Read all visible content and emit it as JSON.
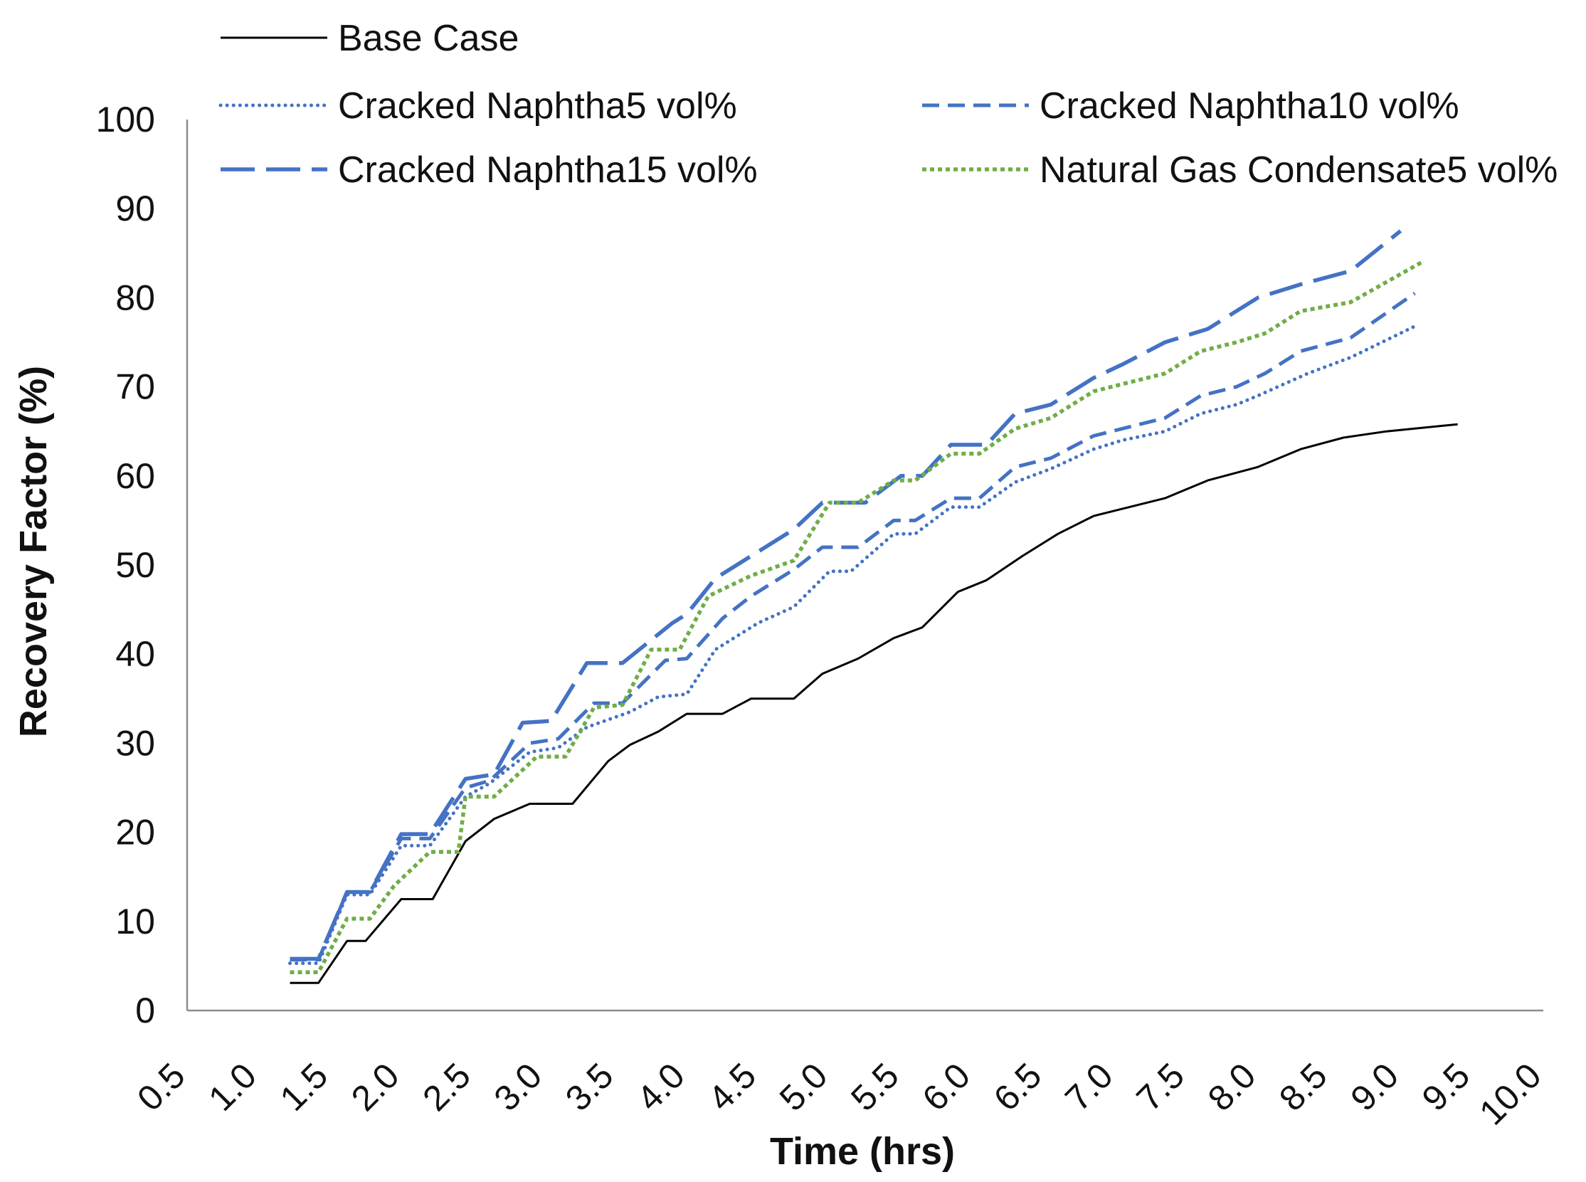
{
  "chart_data": {
    "type": "line",
    "title": "",
    "xlabel": "Time (hrs)",
    "ylabel": "Recovery Factor (%)",
    "xlim": [
      0.5,
      10.0
    ],
    "ylim": [
      0,
      100
    ],
    "xticks": [
      "0.5",
      "1.0",
      "1.5",
      "2.0",
      "2.5",
      "3.0",
      "3.5",
      "4.0",
      "4.5",
      "5.0",
      "5.5",
      "6.0",
      "6.5",
      "7.0",
      "7.5",
      "8.0",
      "8.5",
      "9.0",
      "9.5",
      "10.0"
    ],
    "yticks": [
      "0",
      "10",
      "20",
      "30",
      "40",
      "50",
      "60",
      "70",
      "80",
      "90",
      "100"
    ],
    "legend_position": "top",
    "grid": false,
    "series": [
      {
        "name": "Base Case",
        "style": "solid",
        "color": "#000000",
        "x": [
          1.22,
          1.42,
          1.62,
          1.75,
          2.0,
          2.22,
          2.45,
          2.65,
          2.9,
          3.2,
          3.45,
          3.6,
          3.8,
          4.0,
          4.25,
          4.45,
          4.75,
          4.95,
          5.2,
          5.45,
          5.65,
          5.9,
          6.1,
          6.35,
          6.6,
          6.85,
          7.05,
          7.35,
          7.65,
          8.0,
          8.3,
          8.6,
          8.9,
          9.4
        ],
        "y": [
          3.1,
          3.1,
          7.8,
          7.8,
          12.5,
          12.5,
          19.0,
          21.5,
          23.2,
          23.2,
          28.0,
          29.8,
          31.3,
          33.3,
          33.3,
          35.0,
          35.0,
          37.8,
          39.5,
          41.8,
          43.0,
          47.0,
          48.3,
          51.0,
          53.5,
          55.5,
          56.3,
          57.5,
          59.5,
          61.0,
          63.0,
          64.3,
          65.0,
          65.8
        ]
      },
      {
        "name": "Cracked Naphtha5 vol%",
        "style": "dotted",
        "color": "#4472C4",
        "x": [
          1.22,
          1.42,
          1.62,
          1.78,
          2.0,
          2.2,
          2.45,
          2.62,
          2.9,
          3.1,
          3.3,
          3.6,
          3.8,
          4.0,
          4.2,
          4.5,
          4.75,
          5.0,
          5.15,
          5.45,
          5.6,
          5.85,
          6.05,
          6.3,
          6.55,
          6.85,
          7.05,
          7.35,
          7.6,
          7.85,
          8.0,
          8.35,
          8.65,
          9.1
        ],
        "y": [
          5.3,
          5.3,
          13.0,
          13.0,
          18.5,
          18.5,
          24.0,
          25.5,
          29.0,
          29.5,
          31.8,
          33.5,
          35.2,
          35.5,
          40.5,
          43.5,
          45.3,
          49.3,
          49.3,
          53.5,
          53.5,
          56.5,
          56.5,
          59.3,
          60.8,
          63.0,
          64.0,
          65.0,
          67.0,
          68.0,
          69.0,
          71.5,
          73.3,
          76.8
        ]
      },
      {
        "name": "Cracked Naphtha10 vol%",
        "style": "dashed",
        "color": "#4472C4",
        "x": [
          1.22,
          1.42,
          1.62,
          1.78,
          2.0,
          2.2,
          2.45,
          2.62,
          2.9,
          3.1,
          3.35,
          3.55,
          3.85,
          4.0,
          4.25,
          4.45,
          4.75,
          4.95,
          5.2,
          5.45,
          5.6,
          5.85,
          6.05,
          6.3,
          6.55,
          6.85,
          7.1,
          7.35,
          7.6,
          7.85,
          8.05,
          8.3,
          8.65,
          9.1
        ],
        "y": [
          5.7,
          5.7,
          13.3,
          13.3,
          19.3,
          19.3,
          25.0,
          25.8,
          30.0,
          30.5,
          34.5,
          34.5,
          39.3,
          39.5,
          44.0,
          46.5,
          49.5,
          52.0,
          52.0,
          55.0,
          55.0,
          57.5,
          57.5,
          61.0,
          62.0,
          64.5,
          65.5,
          66.5,
          69.0,
          70.0,
          71.5,
          74.0,
          75.5,
          80.5
        ]
      },
      {
        "name": "Cracked Naphtha15 vol%",
        "style": "longdash",
        "color": "#4472C4",
        "x": [
          1.22,
          1.42,
          1.62,
          1.78,
          2.0,
          2.2,
          2.45,
          2.65,
          2.85,
          3.05,
          3.3,
          3.55,
          3.9,
          4.0,
          4.2,
          4.5,
          4.75,
          4.95,
          5.25,
          5.5,
          5.65,
          5.85,
          6.1,
          6.3,
          6.55,
          6.85,
          7.05,
          7.35,
          7.65,
          8.0,
          8.3,
          8.65,
          9.0
        ],
        "y": [
          5.8,
          5.8,
          13.3,
          13.3,
          19.8,
          19.8,
          26.0,
          26.5,
          32.3,
          32.5,
          39.0,
          39.0,
          43.5,
          44.5,
          48.5,
          51.5,
          54.0,
          57.0,
          57.0,
          60.0,
          60.0,
          63.5,
          63.5,
          67.0,
          68.0,
          71.0,
          72.5,
          75.0,
          76.5,
          80.0,
          81.5,
          83.0,
          87.5
        ]
      },
      {
        "name": "Natural Gas Condensate5 vol%",
        "style": "dotted-dense",
        "color": "#70AD47",
        "x": [
          1.22,
          1.42,
          1.62,
          1.78,
          1.95,
          2.2,
          2.4,
          2.45,
          2.65,
          2.95,
          3.15,
          3.35,
          3.55,
          3.75,
          3.95,
          4.15,
          4.45,
          4.75,
          5.0,
          5.2,
          5.45,
          5.6,
          5.85,
          6.05,
          6.3,
          6.55,
          6.85,
          7.1,
          7.35,
          7.6,
          7.85,
          8.05,
          8.3,
          8.65,
          9.15
        ],
        "y": [
          4.3,
          4.3,
          10.3,
          10.3,
          14.0,
          17.8,
          17.8,
          24.0,
          24.0,
          28.5,
          28.5,
          34.0,
          34.3,
          40.5,
          40.5,
          46.5,
          48.8,
          50.5,
          57.0,
          57.0,
          59.5,
          59.5,
          62.5,
          62.5,
          65.3,
          66.5,
          69.5,
          70.5,
          71.5,
          74.0,
          75.0,
          76.0,
          78.5,
          79.5,
          84.0
        ]
      }
    ]
  }
}
